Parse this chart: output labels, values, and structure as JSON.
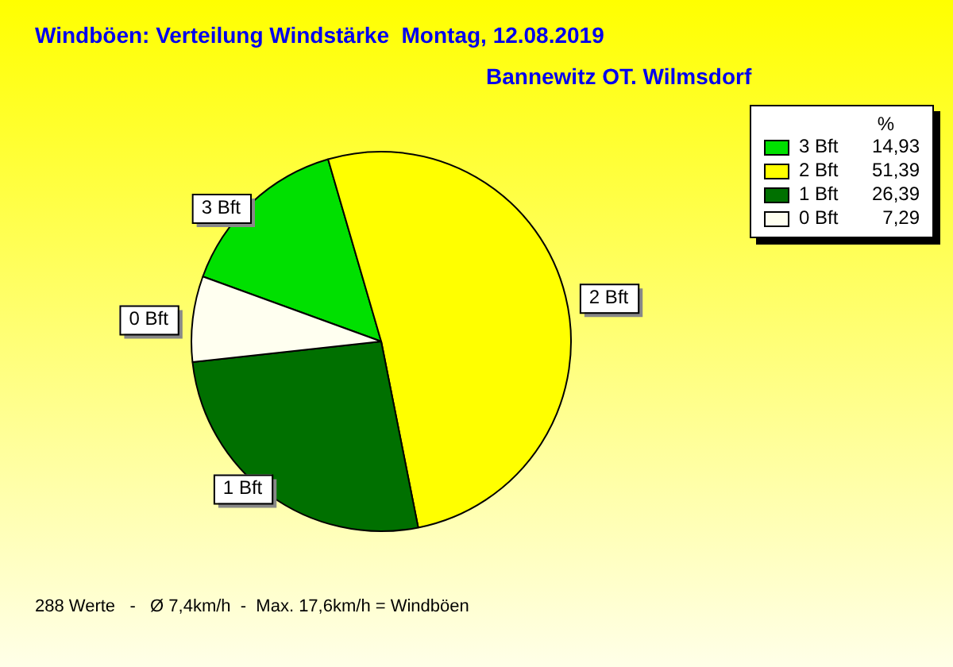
{
  "chart_data": {
    "type": "pie",
    "title": "Windböen: Verteilung Windstärke  Montag, 12.08.2019",
    "subtitle": "Bannewitz OT. Wilmsdorf",
    "categories": [
      "3 Bft",
      "2 Bft",
      "1 Bft",
      "0 Bft"
    ],
    "values": [
      14.93,
      51.39,
      26.39,
      7.29
    ],
    "value_labels": [
      "14,93",
      "51,39",
      "26,39",
      "7,29"
    ],
    "colors": [
      "#00e000",
      "#ffff00",
      "#007000",
      "#fffff0"
    ],
    "legend": "top right",
    "legend_title": "%",
    "annotations": [
      "288 Werte   -   Ø 7,4km/h  -  Max. 17,6km/h = Windböen"
    ]
  }
}
